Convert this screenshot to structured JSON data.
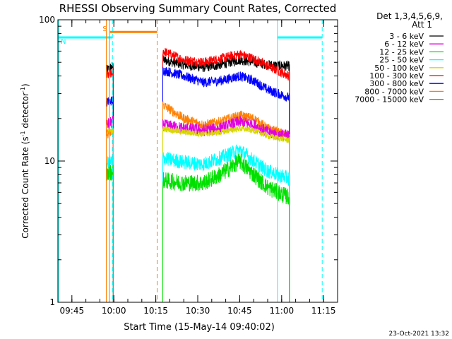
{
  "chart_data": {
    "type": "line",
    "title": "RHESSI Observing Summary Count Rates, Corrected",
    "xlabel": "Start Time (15-May-14 09:40:02)",
    "ylabel_main": "Corrected Count Rate (s",
    "ylabel_sup1": "-1",
    "ylabel_mid": " detector",
    "ylabel_sup2": "-1",
    "ylabel_end": ")",
    "yscale": "log",
    "ylim": [
      1,
      100
    ],
    "xlim_minutes": [
      0,
      100
    ],
    "y_ticks": [
      {
        "value": 1,
        "label": "1"
      },
      {
        "value": 10,
        "label": "10"
      },
      {
        "value": 100,
        "label": "100"
      }
    ],
    "x_ticks": [
      {
        "min": 5,
        "label": "09:45"
      },
      {
        "min": 20,
        "label": "10:00"
      },
      {
        "min": 35,
        "label": "10:15"
      },
      {
        "min": 50,
        "label": "10:30"
      },
      {
        "min": 65,
        "label": "10:45"
      },
      {
        "min": 80,
        "label": "11:00"
      },
      {
        "min": 95,
        "label": "11:15"
      }
    ],
    "legend": {
      "placement": "top-right",
      "header1": "Det 1,3,4,5,6,9,",
      "header2": "Att 1",
      "entries": [
        {
          "label": "3 - 6 keV",
          "color": "#000000"
        },
        {
          "label": "6 - 12 keV",
          "color": "#e000e0"
        },
        {
          "label": "12 - 25 keV",
          "color": "#00e000"
        },
        {
          "label": "25 - 50 keV",
          "color": "#00ffff"
        },
        {
          "label": "50 - 100 keV",
          "color": "#d8d800"
        },
        {
          "label": "100 - 300 keV",
          "color": "#ff0000"
        },
        {
          "label": "300 - 800 keV",
          "color": "#0000ff"
        },
        {
          "label": "800 - 7000 keV",
          "color": "#ff8000"
        },
        {
          "label": "7000 - 15000 keV",
          "color": "#808000"
        }
      ]
    },
    "flags": [
      {
        "label": "S",
        "color": "#ff8000",
        "start_min": 18.5,
        "end_min": 35.5,
        "level": 82
      },
      {
        "label": "N",
        "color": "#00ffff",
        "start_min": 0,
        "end_min": 19.5,
        "level": 75
      },
      {
        "label": "",
        "color": "#00ffff",
        "start_min": 78.5,
        "end_min": 94.5,
        "level": 75
      }
    ],
    "vlines": [
      {
        "min": 0.3,
        "color": "#00ffff",
        "style": "solid"
      },
      {
        "min": 17.3,
        "color": "#ff8000",
        "style": "solid"
      },
      {
        "min": 18.5,
        "color": "#ff8000",
        "style": "solid"
      },
      {
        "min": 19.5,
        "color": "#00ffff",
        "style": "dashed"
      },
      {
        "min": 35.5,
        "color": "#ff8000",
        "style": "dashed"
      },
      {
        "min": 78.5,
        "color": "#00ffff",
        "style": "solid"
      },
      {
        "min": 94.5,
        "color": "#00ffff",
        "style": "dashed"
      }
    ],
    "segment1": {
      "x_start": 17.3,
      "x_end": 19.8
    },
    "segment2": {
      "x_start": 37.5,
      "x_end": 82.8
    },
    "series": [
      {
        "name": "3 - 6 keV",
        "color": "#000000",
        "seg1": [
          [
            17.3,
            44
          ],
          [
            19.8,
            47
          ]
        ],
        "seg2": [
          [
            37.5,
            52
          ],
          [
            45,
            48
          ],
          [
            52,
            46
          ],
          [
            58,
            48
          ],
          [
            65,
            52
          ],
          [
            70,
            50
          ],
          [
            75,
            48
          ],
          [
            82.8,
            47
          ]
        ],
        "noise": 0.08
      },
      {
        "name": "100 - 300 keV",
        "color": "#ff0000",
        "seg1": [
          [
            17.3,
            40
          ],
          [
            19.8,
            42
          ]
        ],
        "seg2": [
          [
            37.5,
            60
          ],
          [
            45,
            52
          ],
          [
            52,
            50
          ],
          [
            58,
            53
          ],
          [
            65,
            57
          ],
          [
            70,
            53
          ],
          [
            75,
            47
          ],
          [
            82.8,
            40
          ]
        ],
        "noise": 0.08
      },
      {
        "name": "300 - 800 keV",
        "color": "#0000ff",
        "seg1": [
          [
            17.3,
            26
          ],
          [
            19.8,
            27
          ]
        ],
        "seg2": [
          [
            37.5,
            44
          ],
          [
            45,
            40
          ],
          [
            52,
            36
          ],
          [
            58,
            37
          ],
          [
            65,
            40
          ],
          [
            70,
            37
          ],
          [
            75,
            32
          ],
          [
            82.8,
            28
          ]
        ],
        "noise": 0.08
      },
      {
        "name": "800 - 7000 keV",
        "color": "#ff8000",
        "seg1": [
          [
            17.3,
            15.5
          ],
          [
            19.8,
            16
          ]
        ],
        "seg2": [
          [
            37.5,
            25
          ],
          [
            45,
            20
          ],
          [
            52,
            18
          ],
          [
            58,
            19
          ],
          [
            65,
            21
          ],
          [
            70,
            20
          ],
          [
            75,
            17
          ],
          [
            82.8,
            15
          ]
        ],
        "noise": 0.08
      },
      {
        "name": "6 - 12 keV",
        "color": "#e000e0",
        "seg1": [
          [
            17.3,
            18
          ],
          [
            19.8,
            19
          ]
        ],
        "seg2": [
          [
            37.5,
            18
          ],
          [
            45,
            17
          ],
          [
            52,
            16.5
          ],
          [
            58,
            17
          ],
          [
            65,
            19
          ],
          [
            70,
            18
          ],
          [
            75,
            16
          ],
          [
            82.8,
            15
          ]
        ],
        "noise": 0.1
      },
      {
        "name": "50 - 100 keV",
        "color": "#d8d800",
        "seg1": [
          [
            17.3,
            16
          ],
          [
            19.8,
            16.5
          ]
        ],
        "seg2": [
          [
            37.5,
            17
          ],
          [
            45,
            16
          ],
          [
            52,
            15.5
          ],
          [
            58,
            16
          ],
          [
            65,
            17
          ],
          [
            70,
            16.5
          ],
          [
            75,
            15
          ],
          [
            82.8,
            14
          ]
        ],
        "noise": 0.05
      },
      {
        "name": "25 - 50 keV",
        "color": "#00ffff",
        "seg1": [
          [
            17.3,
            9.5
          ],
          [
            19.8,
            10
          ]
        ],
        "seg2": [
          [
            37.5,
            10.5
          ],
          [
            45,
            9.8
          ],
          [
            52,
            9.5
          ],
          [
            58,
            10.5
          ],
          [
            65,
            12
          ],
          [
            70,
            10
          ],
          [
            75,
            8.5
          ],
          [
            82.8,
            7.5
          ]
        ],
        "noise": 0.12
      },
      {
        "name": "12 - 25 keV",
        "color": "#00e000",
        "seg1": [
          [
            17.3,
            8
          ],
          [
            19.8,
            8.5
          ]
        ],
        "seg2": [
          [
            37.5,
            7.3
          ],
          [
            45,
            7
          ],
          [
            52,
            7
          ],
          [
            58,
            8
          ],
          [
            65,
            10
          ],
          [
            70,
            8
          ],
          [
            75,
            6.5
          ],
          [
            82.8,
            5.5
          ]
        ],
        "noise": 0.14
      }
    ]
  },
  "footer_timestamp": "23-Oct-2021 13:32"
}
